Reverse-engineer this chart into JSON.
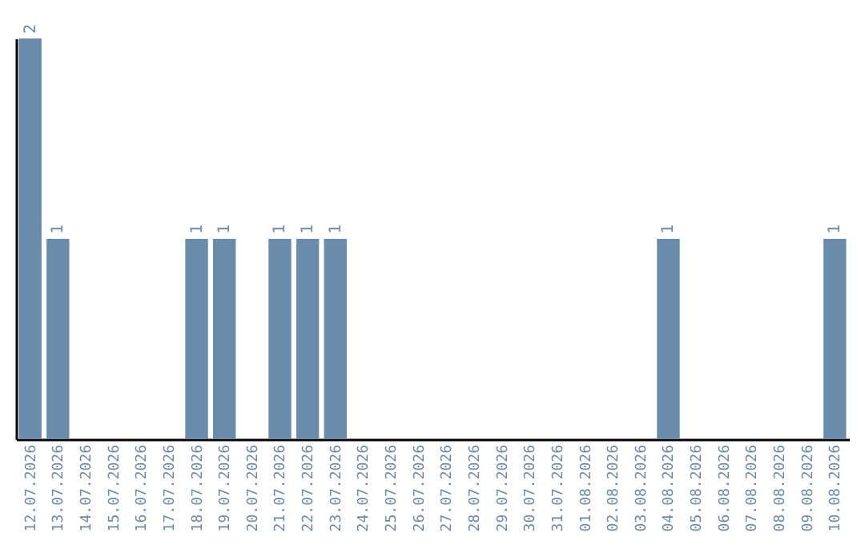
{
  "chart_data": {
    "type": "bar",
    "categories": [
      "12.07.2026",
      "13.07.2026",
      "14.07.2026",
      "15.07.2026",
      "16.07.2026",
      "17.07.2026",
      "18.07.2026",
      "19.07.2026",
      "20.07.2026",
      "21.07.2026",
      "22.07.2026",
      "23.07.2026",
      "24.07.2026",
      "25.07.2026",
      "26.07.2026",
      "27.07.2026",
      "28.07.2026",
      "29.07.2026",
      "30.07.2026",
      "31.07.2026",
      "01.08.2026",
      "02.08.2026",
      "03.08.2026",
      "04.08.2026",
      "05.08.2026",
      "06.08.2026",
      "07.08.2026",
      "08.08.2026",
      "09.08.2026",
      "10.08.2026"
    ],
    "values": [
      2,
      1,
      0,
      0,
      0,
      0,
      1,
      1,
      0,
      1,
      1,
      1,
      0,
      0,
      0,
      0,
      0,
      0,
      0,
      0,
      0,
      0,
      0,
      1,
      0,
      0,
      0,
      0,
      0,
      1
    ],
    "value_labels": [
      "2",
      "1",
      null,
      null,
      null,
      null,
      "1",
      "1",
      null,
      "1",
      "1",
      "1",
      null,
      null,
      null,
      null,
      null,
      null,
      null,
      null,
      null,
      null,
      null,
      "1",
      null,
      null,
      null,
      null,
      null,
      "1"
    ],
    "color": "#6a8cab",
    "tick_labels": "x"
  }
}
